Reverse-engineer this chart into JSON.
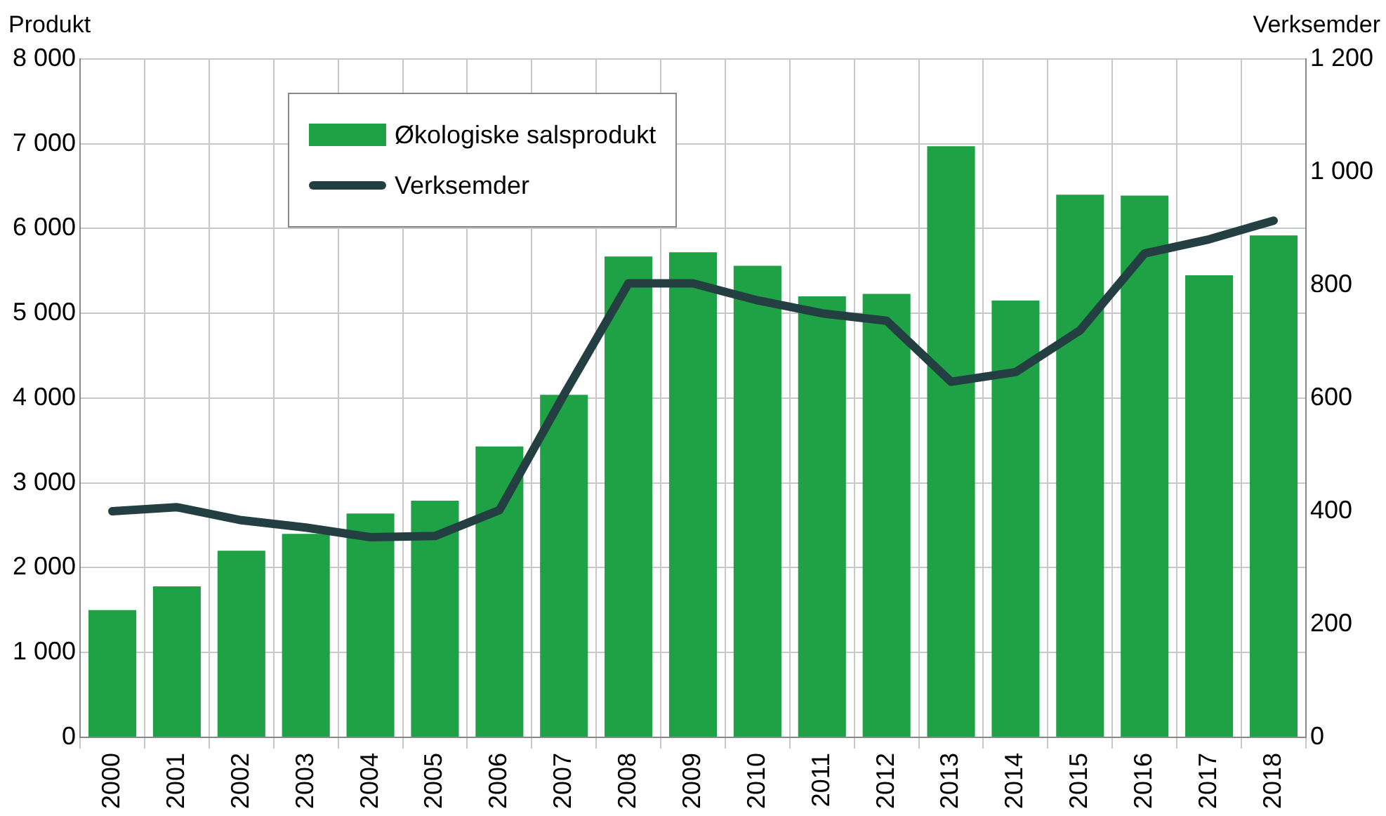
{
  "chart_data": {
    "type": "bar",
    "ylabel": "Produkt",
    "y2label": "Verksemder",
    "categories": [
      "2000",
      "2001",
      "2002",
      "2003",
      "2004",
      "2005",
      "2006",
      "2007",
      "2008",
      "2009",
      "2010",
      "2011",
      "2012",
      "2013",
      "2014",
      "2015",
      "2016",
      "2017",
      "2018"
    ],
    "series": [
      {
        "name": "Økologiske salsprodukt",
        "color": "#1fa146",
        "values": [
          1500,
          1780,
          2200,
          2400,
          2640,
          2790,
          3430,
          4040,
          5670,
          5720,
          5560,
          5200,
          5230,
          6970,
          5150,
          6400,
          6390,
          5450,
          5920
        ]
      },
      {
        "name": "Verksemder",
        "type": "line",
        "axis": "y2",
        "color": "#243f42",
        "values": [
          400,
          407,
          384,
          371,
          354,
          356,
          402,
          606,
          803,
          803,
          773,
          750,
          737,
          629,
          646,
          720,
          856,
          881,
          914
        ]
      }
    ],
    "ylim": [
      0,
      8000
    ],
    "yticks": [
      0,
      {
        "value": 1000,
        "label": "1 000"
      },
      {
        "value": 2000,
        "label": "2 000"
      },
      {
        "value": 3000,
        "label": "3 000"
      },
      {
        "value": 4000,
        "label": "4 000"
      },
      {
        "value": 5000,
        "label": "5 000"
      },
      {
        "value": 6000,
        "label": "6 000"
      },
      {
        "value": 7000,
        "label": "7 000"
      },
      {
        "value": 8000,
        "label": "8 000"
      }
    ],
    "y2lim": [
      0,
      1200
    ],
    "y2ticks": [
      0,
      200,
      400,
      600,
      800,
      {
        "value": 1000,
        "label": "1 000"
      },
      {
        "value": 1200,
        "label": "1 200"
      }
    ],
    "grid": true,
    "legend": "top left",
    "marker": "none",
    "line_style": "solid"
  }
}
